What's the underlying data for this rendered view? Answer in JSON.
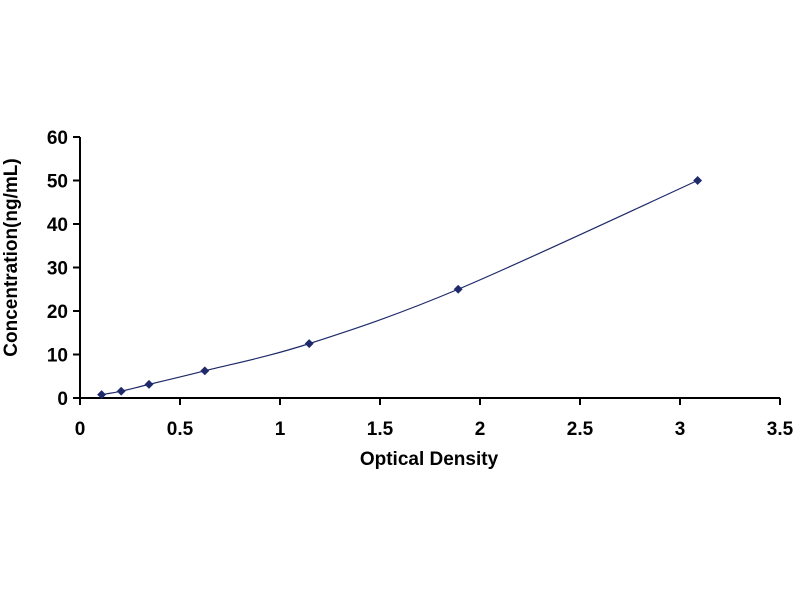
{
  "chart_data": {
    "type": "scatter",
    "title": "",
    "xlabel": "Optical Density",
    "ylabel": "Concentration(ng/mL)",
    "xlim": [
      0,
      3.5
    ],
    "ylim": [
      0,
      60
    ],
    "x_ticks": [
      "0",
      "0.5",
      "1",
      "1.5",
      "2",
      "2.5",
      "3",
      "3.5"
    ],
    "y_ticks": [
      "0",
      "10",
      "20",
      "30",
      "40",
      "50",
      "60"
    ],
    "grid": false,
    "legend": "none",
    "series": [
      {
        "x": [
          0.108,
          0.206,
          0.345,
          0.624,
          1.146,
          1.891,
          3.088
        ],
        "y": [
          0.78,
          1.56,
          3.13,
          6.25,
          12.5,
          25,
          50
        ],
        "marker": "diamond",
        "line": "smooth fitted curve",
        "color": "#1f2a6b"
      }
    ]
  }
}
